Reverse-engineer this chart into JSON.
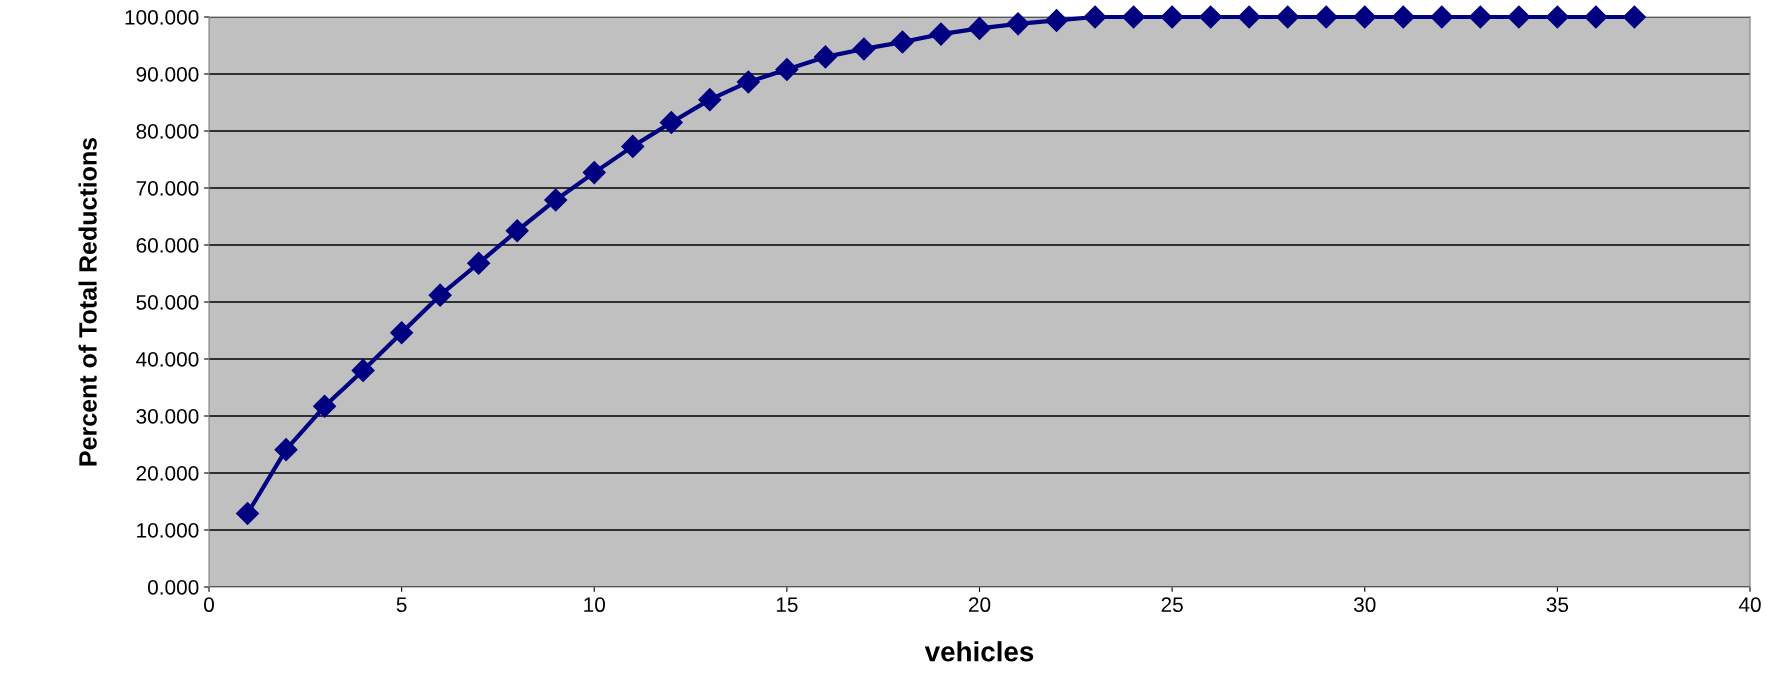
{
  "chart_data": {
    "type": "line",
    "xlabel": "vehicles",
    "ylabel": "Percent of Total Reductions",
    "x": [
      1,
      2,
      3,
      4,
      5,
      6,
      7,
      8,
      9,
      10,
      11,
      12,
      13,
      14,
      15,
      16,
      17,
      18,
      19,
      20,
      21,
      22,
      23,
      24,
      25,
      26,
      27,
      28,
      29,
      30,
      31,
      32,
      33,
      34,
      35,
      36,
      37
    ],
    "series": [
      {
        "color": "#000080",
        "values": [
          12.9,
          24.1,
          31.7,
          38.0,
          44.6,
          51.2,
          56.8,
          62.5,
          67.9,
          72.7,
          77.3,
          81.5,
          85.5,
          88.6,
          90.8,
          93.0,
          94.4,
          95.6,
          97.0,
          98.0,
          98.8,
          99.4,
          100,
          100,
          100,
          100,
          100,
          100,
          100,
          100,
          100,
          100,
          100,
          100,
          100,
          100,
          100
        ]
      }
    ],
    "xlim": [
      0,
      40
    ],
    "xticks": [
      0,
      5,
      10,
      15,
      20,
      25,
      30,
      35,
      40
    ],
    "ylim": [
      0,
      100
    ],
    "yticks": [
      {
        "value": 0,
        "label": "0.000"
      },
      {
        "value": 10,
        "label": "10.000"
      },
      {
        "value": 20,
        "label": "20.000"
      },
      {
        "value": 30,
        "label": "30.000"
      },
      {
        "value": 40,
        "label": "40.000"
      },
      {
        "value": 50,
        "label": "50.000"
      },
      {
        "value": 60,
        "label": "60.000"
      },
      {
        "value": 70,
        "label": "70.000"
      },
      {
        "value": 80,
        "label": "80.000"
      },
      {
        "value": 90,
        "label": "90.000"
      },
      {
        "value": 100,
        "label": "100.000"
      }
    ],
    "grid": "y",
    "marker": "diamond",
    "line_style": "solid"
  }
}
